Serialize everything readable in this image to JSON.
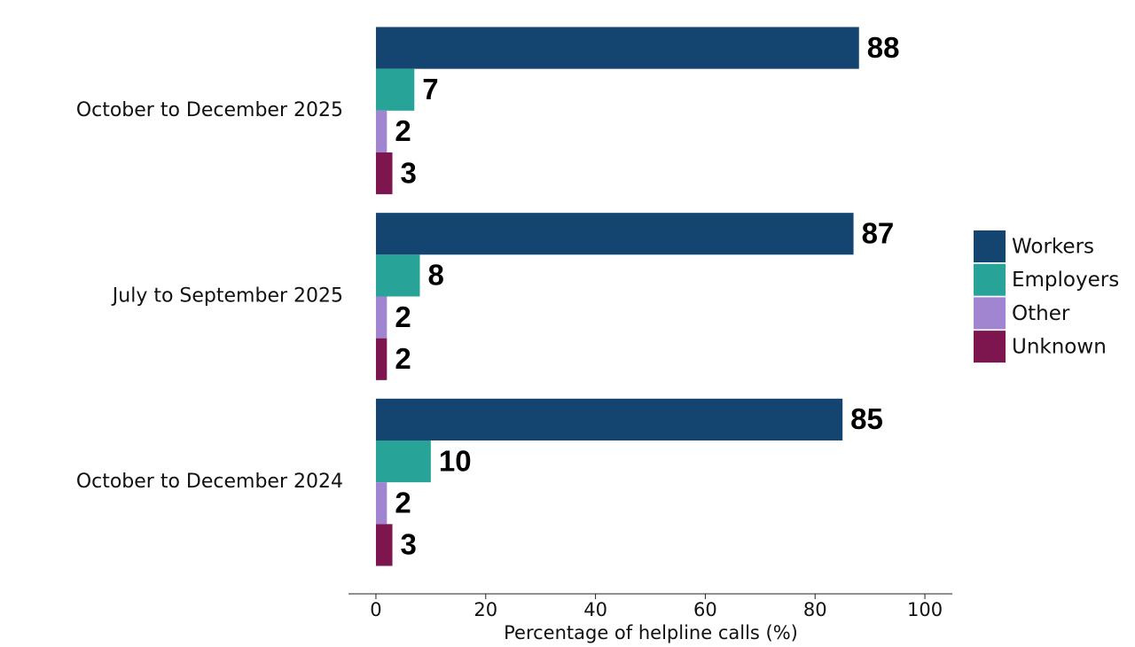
{
  "chart_data": {
    "type": "bar",
    "orientation": "horizontal",
    "categories": [
      "October to December 2025",
      "July to September 2025",
      "October to December 2024"
    ],
    "series": [
      {
        "name": "Workers",
        "color": "#144470",
        "values": [
          88,
          87,
          85
        ]
      },
      {
        "name": "Employers",
        "color": "#28a397",
        "values": [
          7,
          8,
          10
        ]
      },
      {
        "name": "Other",
        "color": "#a285d0",
        "values": [
          2,
          2,
          2
        ]
      },
      {
        "name": "Unknown",
        "color": "#7d154e",
        "values": [
          3,
          2,
          3
        ]
      }
    ],
    "xlabel": "Percentage of helpline calls (%)",
    "xlim": [
      -5,
      105
    ],
    "xticks": [
      0,
      20,
      40,
      60,
      80,
      100
    ],
    "legend": "right"
  }
}
